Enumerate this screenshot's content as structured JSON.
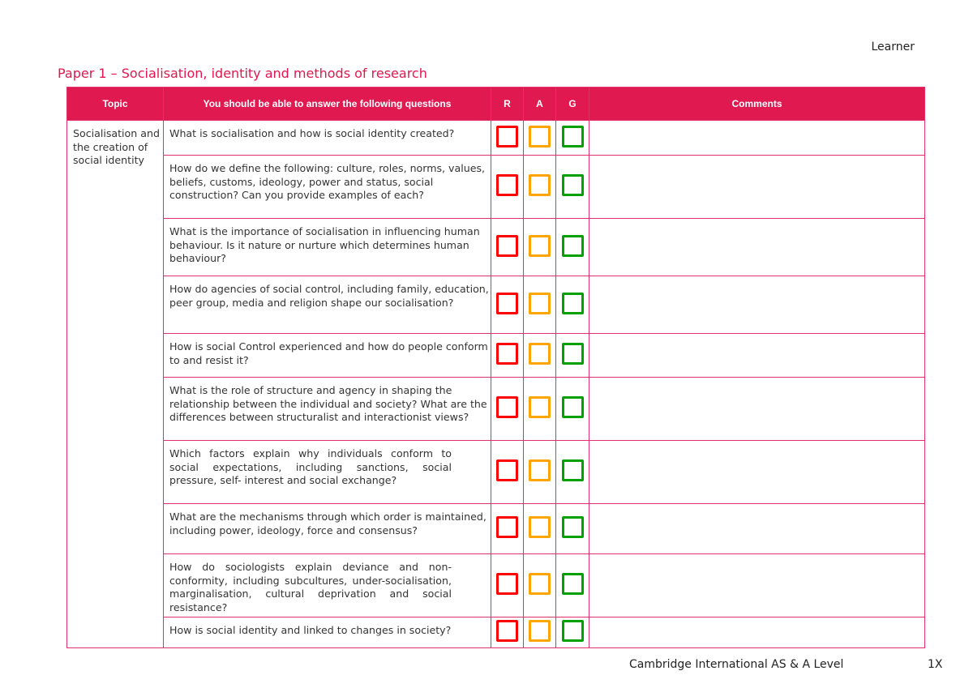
{
  "header": {
    "learner": "Learner",
    "title": "Paper 1 – Socialisation, identity and methods of research"
  },
  "table": {
    "columns": [
      "Topic",
      "You should be able to answer the following questions",
      "R",
      "A",
      "G",
      "Comments"
    ],
    "topic": "Socialisation and the creation of social identity",
    "rows": [
      "What is socialisation and how is social identity created?",
      "How do we define the following: culture, roles, norms, values, beliefs, customs, ideology, power and status, social construction? Can you provide examples of each?",
      "What is the importance of socialisation in influencing human behaviour. Is it nature or nurture which determines human behaviour?",
      "How do agencies of social control, including family, education, peer group, media and religion shape our socialisation?",
      "How is social Control experienced and how do people conform to and resist it?",
      "What is the role of structure and agency in shaping the relationship between the individual and society? What are the differences between structuralist and interactionist views?",
      "Which factors explain why individuals conform to social expectations, including sanctions, social pressure, self- interest and social exchange?",
      "What are the mechanisms through which order is maintained, including power, ideology, force and consensus?",
      "How do sociologists explain deviance and non-conformity, including subcultures, under-socialisation, marginalisation, cultural deprivation and social resistance?",
      "How is social identity and linked to changes in society?"
    ],
    "rag_colors": {
      "R": "#ff0000",
      "A": "#ffa500",
      "G": "#00a000"
    }
  },
  "footer": {
    "text": "Cambridge International AS & A Level",
    "page": "1X"
  }
}
